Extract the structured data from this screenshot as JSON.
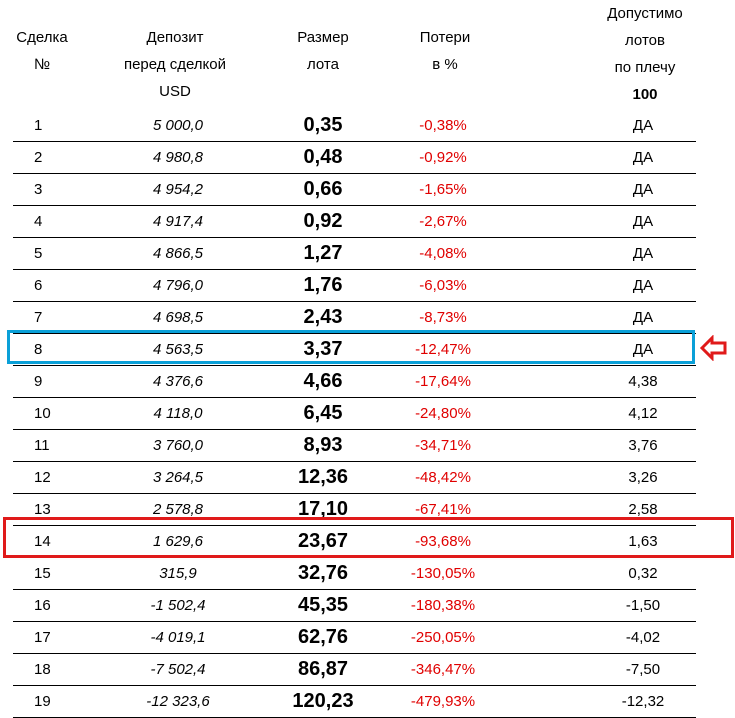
{
  "header": {
    "deal": [
      "Сделка",
      "№"
    ],
    "deposit": [
      "Депозит",
      "перед сделкой",
      "USD"
    ],
    "lot": [
      "Размер",
      "лота"
    ],
    "loss": [
      "Потери",
      "в %"
    ],
    "allowed": [
      "Допустимо",
      "лотов",
      "по плечу",
      "100"
    ]
  },
  "rows": [
    {
      "n": "1",
      "deposit": "5 000,0",
      "lot": "0,35",
      "loss": "-0,38%",
      "allowed": "ДА"
    },
    {
      "n": "2",
      "deposit": "4 980,8",
      "lot": "0,48",
      "loss": "-0,92%",
      "allowed": "ДА"
    },
    {
      "n": "3",
      "deposit": "4 954,2",
      "lot": "0,66",
      "loss": "-1,65%",
      "allowed": "ДА"
    },
    {
      "n": "4",
      "deposit": "4 917,4",
      "lot": "0,92",
      "loss": "-2,67%",
      "allowed": "ДА"
    },
    {
      "n": "5",
      "deposit": "4 866,5",
      "lot": "1,27",
      "loss": "-4,08%",
      "allowed": "ДА"
    },
    {
      "n": "6",
      "deposit": "4 796,0",
      "lot": "1,76",
      "loss": "-6,03%",
      "allowed": "ДА"
    },
    {
      "n": "7",
      "deposit": "4 698,5",
      "lot": "2,43",
      "loss": "-8,73%",
      "allowed": "ДА"
    },
    {
      "n": "8",
      "deposit": "4 563,5",
      "lot": "3,37",
      "loss": "-12,47%",
      "allowed": "ДА"
    },
    {
      "n": "9",
      "deposit": "4 376,6",
      "lot": "4,66",
      "loss": "-17,64%",
      "allowed": "4,38"
    },
    {
      "n": "10",
      "deposit": "4 118,0",
      "lot": "6,45",
      "loss": "-24,80%",
      "allowed": "4,12"
    },
    {
      "n": "11",
      "deposit": "3 760,0",
      "lot": "8,93",
      "loss": "-34,71%",
      "allowed": "3,76"
    },
    {
      "n": "12",
      "deposit": "3 264,5",
      "lot": "12,36",
      "loss": "-48,42%",
      "allowed": "3,26"
    },
    {
      "n": "13",
      "deposit": "2 578,8",
      "lot": "17,10",
      "loss": "-67,41%",
      "allowed": "2,58"
    },
    {
      "n": "14",
      "deposit": "1 629,6",
      "lot": "23,67",
      "loss": "-93,68%",
      "allowed": "1,63"
    },
    {
      "n": "15",
      "deposit": "315,9",
      "lot": "32,76",
      "loss": "-130,05%",
      "allowed": "0,32"
    },
    {
      "n": "16",
      "deposit": "-1 502,4",
      "lot": "45,35",
      "loss": "-180,38%",
      "allowed": "-1,50"
    },
    {
      "n": "17",
      "deposit": "-4 019,1",
      "lot": "62,76",
      "loss": "-250,05%",
      "allowed": "-4,02"
    },
    {
      "n": "18",
      "deposit": "-7 502,4",
      "lot": "86,87",
      "loss": "-346,47%",
      "allowed": "-7,50"
    },
    {
      "n": "19",
      "deposit": "-12 323,6",
      "lot": "120,23",
      "loss": "-479,93%",
      "allowed": "-12,32"
    }
  ],
  "highlights": {
    "blue_row": "8",
    "red_row": "14",
    "blue_color": "#0aa0d8",
    "red_color": "#e01a1a",
    "loss_color": "#e00000",
    "arrow_icon": "left-arrow-outline-icon"
  }
}
